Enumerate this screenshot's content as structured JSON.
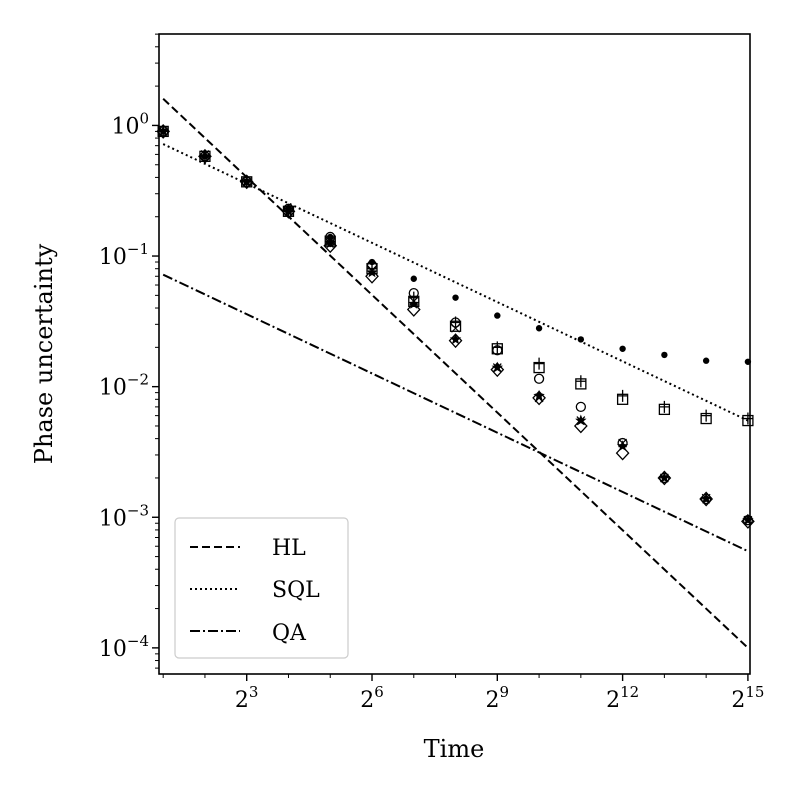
{
  "chart_data": {
    "type": "line",
    "xlabel": "Time",
    "ylabel": "Phase uncertainty",
    "xscale": "log2",
    "yscale": "log10",
    "xlim_log2": [
      0.9,
      15.05
    ],
    "ylim_log10": [
      -4.2,
      0.7
    ],
    "x_ticks": [
      {
        "base": "2",
        "exp": "3",
        "log2": 3
      },
      {
        "base": "2",
        "exp": "6",
        "log2": 6
      },
      {
        "base": "2",
        "exp": "9",
        "log2": 9
      },
      {
        "base": "2",
        "exp": "12",
        "log2": 12
      },
      {
        "base": "2",
        "exp": "15",
        "log2": 15
      }
    ],
    "y_ticks": [
      {
        "base": "10",
        "exp": "0",
        "log10": 0
      },
      {
        "base": "10",
        "exp": "−1",
        "log10": -1
      },
      {
        "base": "10",
        "exp": "−2",
        "log10": -2
      },
      {
        "base": "10",
        "exp": "−3",
        "log10": -3
      },
      {
        "base": "10",
        "exp": "−4",
        "log10": -4
      }
    ],
    "lines": [
      {
        "name": "HL",
        "style": "dashed",
        "x_log2": [
          1,
          15
        ],
        "y": [
          1.6,
          0.0001
        ]
      },
      {
        "name": "SQL",
        "style": "dotted",
        "x_log2": [
          1,
          15
        ],
        "y": [
          0.72,
          0.0055
        ]
      },
      {
        "name": "QA",
        "style": "dashdot",
        "x_log2": [
          1,
          15
        ],
        "y": [
          0.072,
          0.00055
        ]
      }
    ],
    "markers": [
      {
        "name": "dot",
        "x_log2": [
          1,
          2,
          3,
          4,
          5,
          6,
          7,
          8,
          9,
          10,
          11,
          12,
          13,
          14,
          15
        ],
        "y": [
          0.9,
          0.58,
          0.37,
          0.23,
          0.14,
          0.09,
          0.067,
          0.048,
          0.035,
          0.028,
          0.023,
          0.0195,
          0.0175,
          0.0158,
          0.0155
        ]
      },
      {
        "name": "square",
        "x_log2": [
          1,
          2,
          3,
          4,
          5,
          6,
          7,
          8,
          9,
          10,
          11,
          12,
          13,
          14,
          15
        ],
        "y": [
          0.9,
          0.58,
          0.37,
          0.22,
          0.13,
          0.08,
          0.045,
          0.029,
          0.0195,
          0.014,
          0.0105,
          0.008,
          0.0067,
          0.0057,
          0.0055
        ]
      },
      {
        "name": "plus",
        "x_log2": [
          1,
          2,
          3,
          4,
          5,
          6,
          7,
          8,
          9,
          10,
          11,
          12,
          13,
          14,
          15
        ],
        "y": [
          0.9,
          0.58,
          0.37,
          0.22,
          0.13,
          0.08,
          0.048,
          0.031,
          0.02,
          0.015,
          0.011,
          0.0085,
          0.007,
          0.006,
          0.0057
        ]
      },
      {
        "name": "circle",
        "x_log2": [
          1,
          2,
          3,
          4,
          5,
          6,
          7,
          8,
          9,
          10,
          11,
          12,
          13,
          14,
          15
        ],
        "y": [
          0.9,
          0.58,
          0.37,
          0.23,
          0.14,
          0.085,
          0.052,
          0.031,
          0.019,
          0.0115,
          0.007,
          0.0037,
          0.002,
          0.00138,
          0.00095
        ]
      },
      {
        "name": "star",
        "x_log2": [
          1,
          2,
          3,
          4,
          5,
          6,
          7,
          8,
          9,
          10,
          11,
          12,
          13,
          14,
          15
        ],
        "y": [
          0.9,
          0.58,
          0.37,
          0.22,
          0.125,
          0.075,
          0.043,
          0.023,
          0.014,
          0.0085,
          0.0055,
          0.0035,
          0.002,
          0.00138,
          0.00095
        ]
      },
      {
        "name": "diamond",
        "x_log2": [
          1,
          2,
          3,
          4,
          5,
          6,
          7,
          8,
          9,
          10,
          11,
          12,
          13,
          14,
          15
        ],
        "y": [
          0.9,
          0.58,
          0.37,
          0.22,
          0.12,
          0.07,
          0.039,
          0.0225,
          0.0135,
          0.0082,
          0.005,
          0.0031,
          0.002,
          0.00138,
          0.00093
        ]
      },
      {
        "name": "cross",
        "x_log2": [
          1,
          2,
          3,
          4,
          5,
          6,
          7,
          8,
          9,
          10,
          11,
          12,
          13,
          14,
          15
        ],
        "y": [
          0.9,
          0.6,
          0.37,
          0.22,
          0.13,
          0.078,
          0.045,
          0.028,
          0.014,
          0.0082,
          0.0055,
          0.0037,
          0.002,
          0.0014,
          0.00095
        ]
      }
    ],
    "legend": {
      "placement": "lower-left",
      "entries": [
        "HL",
        "SQL",
        "QA"
      ]
    }
  }
}
